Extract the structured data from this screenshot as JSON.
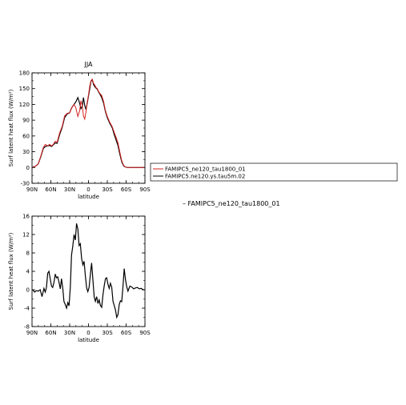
{
  "chart_data": [
    {
      "type": "line",
      "title": "JJA",
      "xlabel": "latitude",
      "ylabel": "Surf latent heat flux (W/m²)",
      "xlim": [
        90,
        -90
      ],
      "ylim": [
        -30,
        180
      ],
      "x_tick_values": [
        90,
        60,
        30,
        0,
        -30,
        -60,
        -90
      ],
      "x_tick_labels": [
        "90N",
        "60N",
        "30N",
        "0",
        "30S",
        "60S",
        "90S"
      ],
      "y_ticks": [
        -30,
        0,
        30,
        60,
        90,
        120,
        150,
        180
      ],
      "grid": false,
      "legend_position": "right",
      "series": [
        {
          "name": "FAMIPC5_ne120_tau1800_01",
          "color": "#d62020",
          "x": [
            89,
            85,
            80,
            76,
            72,
            69,
            65,
            62,
            59,
            56,
            53,
            50,
            46,
            42,
            38,
            34,
            30,
            27,
            23,
            20,
            17,
            14,
            12,
            10,
            8,
            6,
            4,
            2,
            0,
            -2,
            -4,
            -6,
            -8,
            -10,
            -12,
            -14,
            -16,
            -18,
            -21,
            -24,
            -27,
            -30,
            -34,
            -38,
            -41,
            -44,
            -47,
            -50,
            -53,
            -56,
            -59,
            -62,
            -65,
            -68,
            -71,
            -74,
            -78,
            -82,
            -86,
            -89
          ],
          "y": [
            1,
            2,
            7,
            22,
            38,
            44,
            41,
            44,
            41,
            44,
            50,
            48,
            66,
            78,
            98,
            103,
            104,
            113,
            120,
            113,
            97,
            108,
            127,
            118,
            98,
            92,
            106,
            124,
            138,
            155,
            165,
            168,
            160,
            157,
            152,
            150,
            145,
            141,
            137,
            126,
            108,
            97,
            86,
            77,
            67,
            57,
            47,
            29,
            13,
            4,
            1,
            0,
            0,
            0,
            0,
            0,
            0,
            0,
            0,
            0
          ]
        },
        {
          "name": "FAMIPC5.ne120.ys.tau5m.02",
          "color": "#000000",
          "x": [
            89,
            85,
            80,
            76,
            72,
            69,
            65,
            62,
            59,
            56,
            53,
            50,
            46,
            42,
            38,
            34,
            30,
            27,
            23,
            20,
            17,
            14,
            12,
            10,
            8,
            6,
            4,
            2,
            0,
            -2,
            -4,
            -6,
            -8,
            -10,
            -12,
            -14,
            -16,
            -18,
            -21,
            -24,
            -27,
            -30,
            -34,
            -38,
            -41,
            -44,
            -47,
            -50,
            -53,
            -56,
            -59,
            -62,
            -65,
            -68,
            -71,
            -74,
            -78,
            -82,
            -86,
            -89
          ],
          "y": [
            1,
            2,
            7,
            21,
            36,
            40,
            41,
            42,
            40,
            43,
            47,
            46,
            63,
            76,
            95,
            102,
            104,
            113,
            120,
            125,
            133,
            122,
            112,
            116,
            133,
            118,
            110,
            122,
            136,
            150,
            164,
            167,
            158,
            154,
            151,
            149,
            144,
            140,
            133,
            123,
            106,
            95,
            84,
            75,
            63,
            52,
            42,
            25,
            11,
            3,
            1,
            0,
            0,
            0,
            0,
            0,
            0,
            0,
            0,
            0
          ]
        }
      ]
    },
    {
      "type": "line",
      "title": "",
      "xlabel": "latitude",
      "ylabel": "Surf latent heat flux (W/m²)",
      "xlim": [
        90,
        -90
      ],
      "ylim": [
        -8,
        16
      ],
      "x_tick_values": [
        90,
        60,
        30,
        0,
        -30,
        -60,
        -90
      ],
      "x_tick_labels": [
        "90N",
        "60N",
        "30N",
        "0",
        "30S",
        "60S",
        "90S"
      ],
      "y_ticks": [
        -8,
        -4,
        0,
        4,
        8,
        12,
        16
      ],
      "grid": false,
      "legend_position": "right",
      "series": [
        {
          "name": "FAMIPC5_ne120_tau1800_01",
          "color": "#000000",
          "x": [
            89,
            86,
            83,
            80,
            77,
            74,
            71,
            69,
            67,
            65,
            63,
            61,
            59,
            57,
            55,
            53,
            51,
            49,
            47,
            45,
            43,
            41,
            39,
            37,
            35,
            33,
            31,
            29,
            27,
            25,
            23,
            21,
            19,
            17,
            15,
            13,
            11,
            9,
            7,
            5,
            3,
            1,
            -1,
            -3,
            -5,
            -7,
            -9,
            -11,
            -13,
            -15,
            -17,
            -19,
            -21,
            -23,
            -25,
            -27,
            -29,
            -31,
            -33,
            -35,
            -37,
            -39,
            -41,
            -43,
            -45,
            -47,
            -49,
            -51,
            -53,
            -55,
            -57,
            -59,
            -61,
            -63,
            -66,
            -69,
            -72,
            -75,
            -78,
            -81,
            -84,
            -87,
            -89
          ],
          "y": [
            0,
            -0.5,
            -0.2,
            -0.3,
            0,
            -1.5,
            0.3,
            -0.5,
            0.5,
            3.6,
            4,
            2.4,
            0.8,
            0.5,
            1.6,
            3.4,
            2.6,
            2.8,
            1.6,
            0.2,
            2.4,
            0.3,
            -2.6,
            -3.2,
            -4,
            -2.8,
            -3.5,
            0.5,
            7.5,
            9.5,
            12,
            10.8,
            14.4,
            13.2,
            9.6,
            10,
            6.8,
            5.4,
            6.2,
            3,
            0.4,
            -0.4,
            0.6,
            3.4,
            5.8,
            2.2,
            -1.5,
            -2.5,
            -1.5,
            -3,
            -2.2,
            -3.4,
            -3.8,
            -1.2,
            0.8,
            2.4,
            2.6,
            1.2,
            0.3,
            1.4,
            0.6,
            -2.5,
            -3.4,
            -4.4,
            -6,
            -5.4,
            -3.2,
            -2.4,
            -2.6,
            0.8,
            4.6,
            2.2,
            0.6,
            -0.3,
            0.8,
            0.6,
            0.2,
            0.4,
            0.5,
            0.2,
            0.3,
            0,
            0
          ]
        }
      ]
    }
  ],
  "legends": {
    "top": [
      "FAMIPC5_ne120_tau1800_01",
      "FAMIPC5.ne120.ys.tau5m.02"
    ],
    "bottom": "FAMIPC5_ne120_tau1800_01"
  }
}
